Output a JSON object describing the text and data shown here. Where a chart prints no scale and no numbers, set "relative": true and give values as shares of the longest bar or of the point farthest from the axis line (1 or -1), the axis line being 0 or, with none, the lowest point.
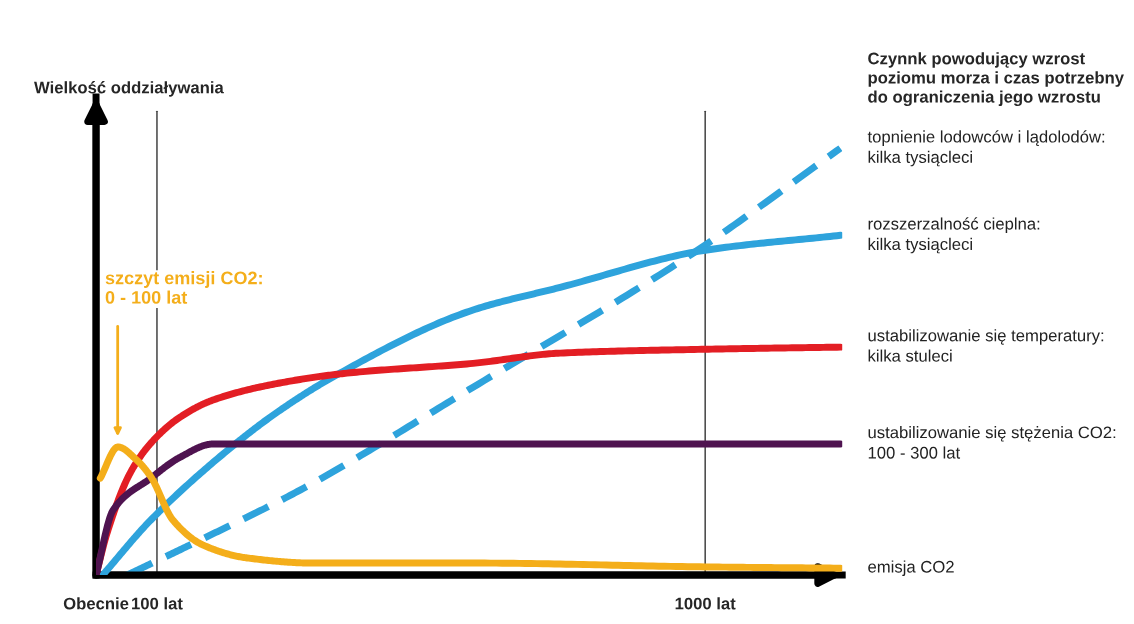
{
  "chart_data": {
    "type": "line",
    "relative": true,
    "ylabel": "Wielkość oddziaływania",
    "legend_title": "Czynnk powodujący wzrost\npoziomu morza i czas potrzebny\ndo ograniczenia jego wzrostu",
    "xlim": [
      0,
      1225
    ],
    "xticks": [
      {
        "value": 0,
        "label": "Obecnie"
      },
      {
        "value": 100,
        "label": "100 lat"
      },
      {
        "value": 1000,
        "label": "1000 lat"
      }
    ],
    "ref_lines": [
      {
        "axis": "x",
        "value": 100,
        "color": "#333333"
      },
      {
        "axis": "x",
        "value": 1000,
        "color": "#333333"
      }
    ],
    "annotations": [
      "szczyt emisji CO2:\n0 - 100 lat"
    ],
    "series": [
      {
        "name": "topnienie lodowców i lądolodów:\nkilka tysiącleci",
        "color": "#2ea3dc",
        "line_style": "dashed",
        "x": [
          51,
          171,
          335,
          619,
          980,
          1222
        ],
        "values": [
          0,
          0.082,
          0.199,
          0.44,
          0.754,
          1.0
        ]
      },
      {
        "name": "rozszerzalność cieplna:\nkilka tysiącleci",
        "color": "#2ea3dc",
        "line_style": "solid",
        "x": [
          11,
          90,
          232,
          302,
          389,
          619,
          762,
          1000,
          1222
        ],
        "values": [
          0,
          0.129,
          0.311,
          0.386,
          0.464,
          0.621,
          0.674,
          0.761,
          0.796
        ]
      },
      {
        "name": "ustabilizowanie się temperatury:\nkilka stuleci",
        "color": "#e31e24",
        "line_style": "solid",
        "x": [
          0,
          18,
          56,
          90,
          138,
          192,
          302,
          412,
          619,
          762,
          1000,
          1222
        ],
        "values": [
          0,
          0.098,
          0.239,
          0.309,
          0.37,
          0.41,
          0.45,
          0.473,
          0.496,
          0.52,
          0.529,
          0.534
        ]
      },
      {
        "name": "ustabilizowanie się stężenia CO2:\n100 - 300 lat",
        "color": "#4f1350",
        "line_style": "solid",
        "x": [
          0,
          28,
          90,
          138,
          192,
          225,
          1222
        ],
        "values": [
          0,
          0.152,
          0.227,
          0.276,
          0.307,
          0.307,
          0.307
        ]
      },
      {
        "name": "emisja CO2",
        "color": "#f4ae1a",
        "line_style": "solid",
        "x": [
          7,
          36,
          67,
          90,
          126,
          176,
          248,
          356,
          619,
          1000,
          1222
        ],
        "values": [
          0.227,
          0.3,
          0.269,
          0.23,
          0.129,
          0.07,
          0.04,
          0.028,
          0.028,
          0.019,
          0.016
        ]
      }
    ]
  }
}
